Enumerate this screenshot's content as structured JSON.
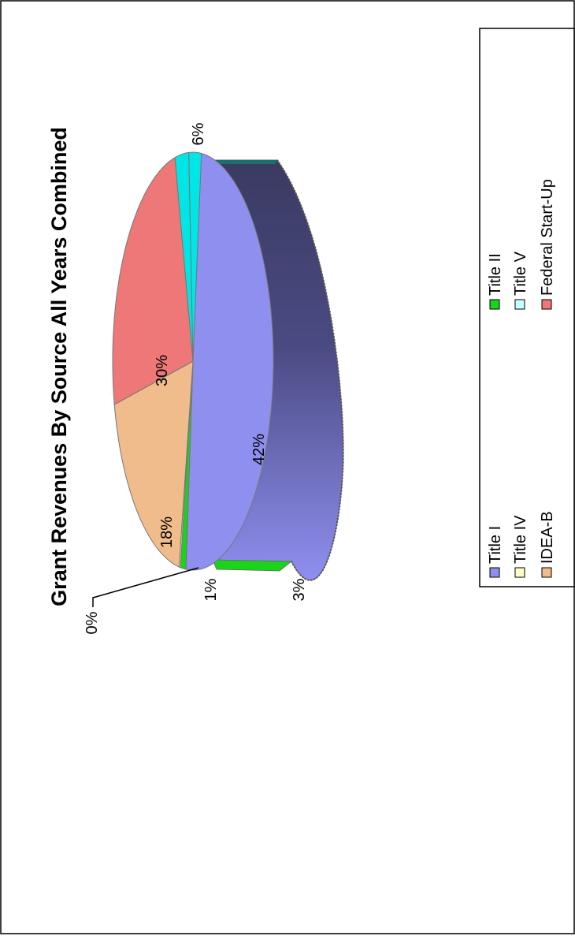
{
  "chart_data": {
    "type": "pie",
    "title": "Grant Revenues By Source All Years Combined",
    "slices": [
      {
        "label": "Title I",
        "value": 42,
        "display": "42%",
        "color": "#8f8ff0"
      },
      {
        "label": "Title II",
        "value": 3,
        "display": "3%",
        "color": "#19d419"
      },
      {
        "label": "Title IV",
        "value": 0,
        "display": "0%",
        "color": "#ffffc8"
      },
      {
        "label": "Title V",
        "value": 1,
        "display": "1%",
        "color": "#00e6e6"
      },
      {
        "label": "IDEA-B",
        "value": 18,
        "display": "18%",
        "color": "#f0bc8c"
      },
      {
        "label": "Federal Start-Up",
        "value": 30,
        "display": "30%",
        "color": "#ee7777"
      },
      {
        "label": "",
        "value": 6,
        "display": "6%",
        "color": "#00e6e6"
      }
    ],
    "legend": [
      {
        "label": "Title I",
        "color": "#8f8ff0"
      },
      {
        "label": "Title IV",
        "color": "#ffffc8"
      },
      {
        "label": "IDEA-B",
        "color": "#f0bc8c"
      },
      {
        "label": "Title II",
        "color": "#19d419"
      },
      {
        "label": "Title V",
        "color": "#c8ffff"
      },
      {
        "label": "Federal Start-Up",
        "color": "#ee7777"
      }
    ],
    "legend_position": "right (rotated page)",
    "orientation": "rotated 90° counter-clockwise"
  }
}
